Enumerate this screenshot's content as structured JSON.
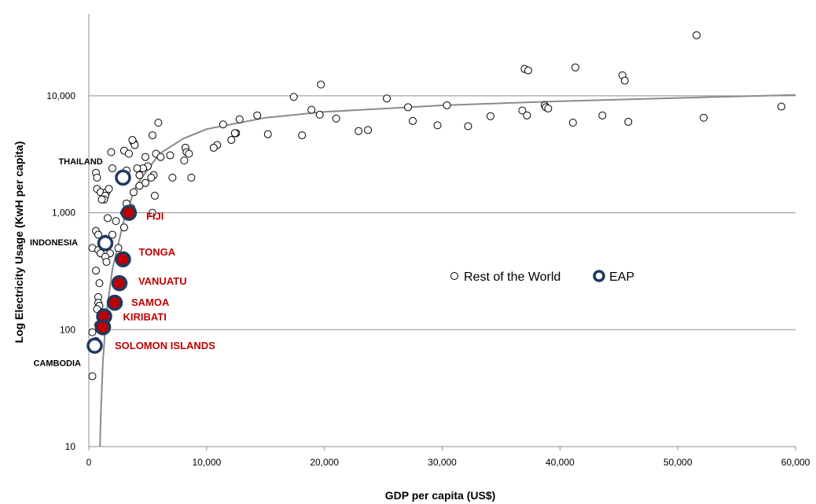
{
  "chart_data": {
    "type": "scatter",
    "xlabel": "GDP per capita (US$)",
    "ylabel": "Log  Electricity Usage (KwH per capita)",
    "xlim": [
      0,
      60000
    ],
    "ylim": [
      10,
      50000
    ],
    "y_scale": "log",
    "grid": "horizontal at 10, 100, 1,000, 10,000",
    "x_ticks": [
      "0",
      "10,000",
      "20,000",
      "30,000",
      "40,000",
      "50,000",
      "60,000"
    ],
    "y_ticks": [
      {
        "value": 10,
        "label": "10"
      },
      {
        "value": 100,
        "label": "100"
      },
      {
        "value": 1000,
        "label": "1,000"
      },
      {
        "value": 10000,
        "label": "10,000"
      }
    ],
    "legend": {
      "placement": "center-right",
      "items": [
        {
          "label": "Rest of the World",
          "marker": "small-open-circle"
        },
        {
          "label": "EAP",
          "marker": "large-open-circle-navy"
        }
      ]
    },
    "colors": {
      "eap_ring": "#1f3a5f",
      "eap_fill": "#c00000",
      "label_red": "#c00000",
      "trend": "#8a8a8a",
      "grid": "#8f8f8f"
    },
    "trendline": {
      "type": "logarithmic",
      "points": [
        [
          950,
          10
        ],
        [
          1000,
          17
        ],
        [
          1200,
          55
        ],
        [
          1500,
          140
        ],
        [
          2000,
          330
        ],
        [
          3000,
          880
        ],
        [
          4000,
          1700
        ],
        [
          6000,
          3200
        ],
        [
          8000,
          4300
        ],
        [
          10000,
          5200
        ],
        [
          15000,
          6500
        ],
        [
          20000,
          7300
        ],
        [
          30000,
          8300
        ],
        [
          40000,
          9000
        ],
        [
          50000,
          9600
        ],
        [
          60000,
          10200
        ]
      ]
    },
    "series": [
      {
        "name": "Rest of the World",
        "points": [
          [
            51600,
            33000
          ],
          [
            41300,
            17500
          ],
          [
            37000,
            17000
          ],
          [
            37300,
            16500
          ],
          [
            45300,
            15000
          ],
          [
            45500,
            13500
          ],
          [
            19700,
            12500
          ],
          [
            17400,
            9800
          ],
          [
            25300,
            9500
          ],
          [
            58800,
            8100
          ],
          [
            38700,
            8300
          ],
          [
            38800,
            8000
          ],
          [
            39000,
            7800
          ],
          [
            30400,
            8300
          ],
          [
            27100,
            8000
          ],
          [
            36800,
            7500
          ],
          [
            18900,
            7600
          ],
          [
            19600,
            6900
          ],
          [
            14300,
            6800
          ],
          [
            34100,
            6700
          ],
          [
            37200,
            6800
          ],
          [
            43600,
            6800
          ],
          [
            21000,
            6400
          ],
          [
            52200,
            6500
          ],
          [
            27500,
            6100
          ],
          [
            12800,
            6300
          ],
          [
            11400,
            5700
          ],
          [
            29600,
            5600
          ],
          [
            32200,
            5500
          ],
          [
            41100,
            5900
          ],
          [
            45800,
            6000
          ],
          [
            23700,
            5100
          ],
          [
            22900,
            5000
          ],
          [
            15200,
            4700
          ],
          [
            18100,
            4600
          ],
          [
            12500,
            4800
          ],
          [
            12400,
            4800
          ],
          [
            12100,
            4200
          ],
          [
            10900,
            3800
          ],
          [
            10600,
            3600
          ],
          [
            5400,
            4600
          ],
          [
            5900,
            5900
          ],
          [
            3800,
            4000
          ],
          [
            3900,
            3800
          ],
          [
            3700,
            4200
          ],
          [
            8200,
            3600
          ],
          [
            8300,
            3300
          ],
          [
            8500,
            3200
          ],
          [
            5700,
            3200
          ],
          [
            6100,
            3000
          ],
          [
            6900,
            3100
          ],
          [
            3000,
            3400
          ],
          [
            3400,
            3200
          ],
          [
            4800,
            3000
          ],
          [
            1900,
            3300
          ],
          [
            8100,
            2800
          ],
          [
            5000,
            2500
          ],
          [
            4600,
            2400
          ],
          [
            4100,
            2400
          ],
          [
            3200,
            2300
          ],
          [
            2000,
            2400
          ],
          [
            600,
            2200
          ],
          [
            700,
            2000
          ],
          [
            4300,
            2100
          ],
          [
            5500,
            2100
          ],
          [
            5300,
            2000
          ],
          [
            8700,
            2000
          ],
          [
            7100,
            2000
          ],
          [
            700,
            1600
          ],
          [
            1000,
            1500
          ],
          [
            1500,
            1500
          ],
          [
            1400,
            1400
          ],
          [
            1700,
            1600
          ],
          [
            1300,
            1300
          ],
          [
            1100,
            1300
          ],
          [
            4800,
            1800
          ],
          [
            4300,
            1700
          ],
          [
            3800,
            1500
          ],
          [
            5600,
            1400
          ],
          [
            3600,
            1100
          ],
          [
            3200,
            1200
          ],
          [
            3000,
            1000
          ],
          [
            5400,
            1000
          ],
          [
            1600,
            900
          ],
          [
            2300,
            850
          ],
          [
            3000,
            750
          ],
          [
            600,
            700
          ],
          [
            800,
            650
          ],
          [
            2000,
            650
          ],
          [
            1400,
            600
          ],
          [
            1500,
            550
          ],
          [
            2500,
            500
          ],
          [
            1800,
            450
          ],
          [
            300,
            500
          ],
          [
            800,
            480
          ],
          [
            1000,
            450
          ],
          [
            1400,
            420
          ],
          [
            600,
            320
          ],
          [
            1500,
            380
          ],
          [
            900,
            250
          ],
          [
            800,
            190
          ],
          [
            800,
            170
          ],
          [
            900,
            160
          ],
          [
            700,
            150
          ],
          [
            1200,
            140
          ],
          [
            800,
            110
          ],
          [
            300,
            95
          ],
          [
            600,
            80
          ],
          [
            500,
            75
          ],
          [
            700,
            75
          ],
          [
            300,
            40
          ]
        ]
      },
      {
        "name": "EAP",
        "points": [
          {
            "label": "THAILAND",
            "x": 2900,
            "y": 2000,
            "filled": false
          },
          {
            "label": "INDONESIA",
            "x": 1400,
            "y": 550,
            "filled": false
          },
          {
            "label": "FIJI",
            "x": 3400,
            "y": 1000,
            "filled": true
          },
          {
            "label": "TONGA",
            "x": 2900,
            "y": 400,
            "filled": true
          },
          {
            "label": "VANUATU",
            "x": 2600,
            "y": 250,
            "filled": true
          },
          {
            "label": "SAMOA",
            "x": 2200,
            "y": 170,
            "filled": true
          },
          {
            "label": "KIRIBATI",
            "x": 1300,
            "y": 130,
            "filled": true
          },
          {
            "label": "",
            "x": 1200,
            "y": 105,
            "filled": true
          },
          {
            "label": "SOLOMON ISLANDS",
            "x": 1200,
            "y": 105,
            "filled": true
          },
          {
            "label": "CAMBODIA",
            "x": 500,
            "y": 73,
            "filled": false
          }
        ]
      }
    ]
  }
}
